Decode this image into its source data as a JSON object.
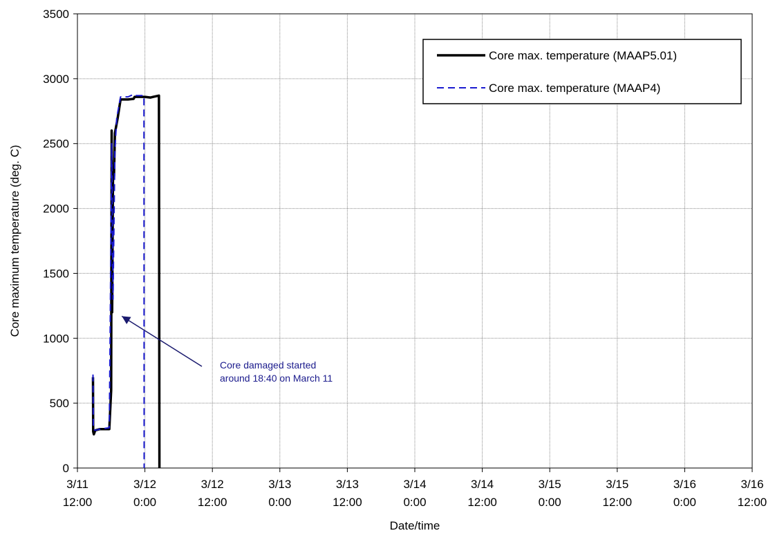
{
  "chart_data": {
    "type": "line",
    "xlabel": "Date/time",
    "ylabel": "Core maximum temperature (deg. C)",
    "ylim": [
      0,
      3500
    ],
    "yticks": [
      0,
      500,
      1000,
      1500,
      2000,
      2500,
      3000,
      3500
    ],
    "xlim": [
      "3/11 12:00",
      "3/16 12:00"
    ],
    "xticks": [
      {
        "date": "3/11",
        "time": "12:00"
      },
      {
        "date": "3/12",
        "time": "0:00"
      },
      {
        "date": "3/12",
        "time": "12:00"
      },
      {
        "date": "3/13",
        "time": "0:00"
      },
      {
        "date": "3/13",
        "time": "12:00"
      },
      {
        "date": "3/14",
        "time": "0:00"
      },
      {
        "date": "3/14",
        "time": "12:00"
      },
      {
        "date": "3/15",
        "time": "0:00"
      },
      {
        "date": "3/15",
        "time": "12:00"
      },
      {
        "date": "3/16",
        "time": "0:00"
      },
      {
        "date": "3/16",
        "time": "12:00"
      }
    ],
    "grid": true,
    "legend_position": "top-right",
    "series": [
      {
        "name": "Core max. temperature (MAAP5.01)",
        "color": "#000000",
        "style": "solid",
        "points": [
          [
            "3/11 14:46",
            700
          ],
          [
            "3/11 14:48",
            280
          ],
          [
            "3/11 14:55",
            260
          ],
          [
            "3/11 15:10",
            290
          ],
          [
            "3/11 16:00",
            300
          ],
          [
            "3/11 17:00",
            300
          ],
          [
            "3/11 17:40",
            300
          ],
          [
            "3/11 18:00",
            600
          ],
          [
            "3/11 18:05",
            2600
          ],
          [
            "3/11 18:10",
            1200
          ],
          [
            "3/11 18:20",
            2300
          ],
          [
            "3/11 18:30",
            2250
          ],
          [
            "3/11 18:40",
            2580
          ],
          [
            "3/11 19:10",
            2700
          ],
          [
            "3/11 19:40",
            2840
          ],
          [
            "3/11 21:00",
            2840
          ],
          [
            "3/11 22:00",
            2845
          ],
          [
            "3/11 22:10",
            2860
          ],
          [
            "3/12 0:00",
            2860
          ],
          [
            "3/12 1:00",
            2855
          ],
          [
            "3/12 1:30",
            2860
          ],
          [
            "3/12 2:30",
            2870
          ],
          [
            "3/12 2:35",
            0
          ]
        ]
      },
      {
        "name": "Core max. temperature (MAAP4)",
        "color": "#1a1ad0",
        "style": "dashed",
        "points": [
          [
            "3/11 14:46",
            720
          ],
          [
            "3/11 14:50",
            300
          ],
          [
            "3/11 15:10",
            290
          ],
          [
            "3/11 16:00",
            300
          ],
          [
            "3/11 17:40",
            310
          ],
          [
            "3/11 17:50",
            1100
          ],
          [
            "3/11 18:05",
            2500
          ],
          [
            "3/11 18:20",
            1300
          ],
          [
            "3/11 18:40",
            2450
          ],
          [
            "3/11 19:00",
            2700
          ],
          [
            "3/11 19:40",
            2860
          ],
          [
            "3/11 21:00",
            2860
          ],
          [
            "3/11 22:00",
            2880
          ],
          [
            "3/11 22:30",
            2870
          ],
          [
            "3/11 23:50",
            2870
          ],
          [
            "3/11 23:52",
            0
          ]
        ]
      }
    ],
    "annotation": {
      "lines": [
        "Core damaged started",
        "around 18:40 on March 11"
      ],
      "arrow_target": [
        "3/11 18:40",
        1170
      ]
    }
  }
}
